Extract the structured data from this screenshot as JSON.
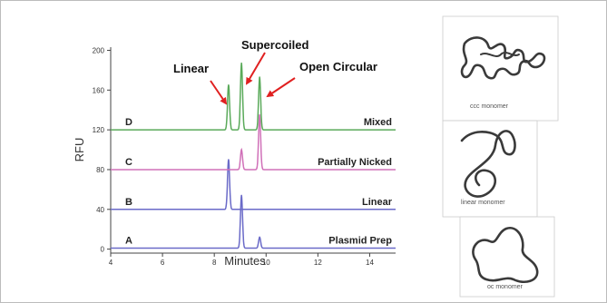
{
  "chart_data": {
    "type": "line",
    "xlabel": "Minutes",
    "ylabel": "RFU",
    "xlim": [
      4,
      15
    ],
    "ylim": [
      -4,
      205
    ],
    "x_ticks": [
      4,
      6,
      8,
      10,
      12,
      14
    ],
    "y_ticks": [
      0,
      40,
      80,
      120,
      160,
      200
    ],
    "grid": false,
    "series": [
      {
        "letter": "A",
        "name": "Plasmid Prep",
        "color": "#6a6ac8",
        "baseline": 1,
        "peaks": [
          {
            "x": 9.05,
            "y": 54
          },
          {
            "x": 9.75,
            "y": 12
          }
        ]
      },
      {
        "letter": "B",
        "name": "Linear",
        "color": "#6a6ac8",
        "baseline": 40,
        "peaks": [
          {
            "x": 8.55,
            "y": 90
          }
        ]
      },
      {
        "letter": "C",
        "name": "Partially Nicked",
        "color": "#d070b8",
        "baseline": 80,
        "peaks": [
          {
            "x": 9.05,
            "y": 100
          },
          {
            "x": 9.75,
            "y": 135
          }
        ]
      },
      {
        "letter": "D",
        "name": "Mixed",
        "color": "#5aaa5a",
        "baseline": 120,
        "peaks": [
          {
            "x": 8.55,
            "y": 165
          },
          {
            "x": 9.05,
            "y": 187
          },
          {
            "x": 9.75,
            "y": 173
          }
        ]
      }
    ],
    "annotations": [
      {
        "text": "Linear",
        "points_to": "8.55 peak (D)"
      },
      {
        "text": "Supercoiled",
        "points_to": "9.05 peak (D)"
      },
      {
        "text": "Open Circular",
        "points_to": "9.75 peak (D)"
      }
    ]
  },
  "schematics": [
    {
      "caption": "ccc monomer",
      "icon": "supercoiled-dna-icon"
    },
    {
      "caption": "linear monomer",
      "icon": "linear-dna-icon"
    },
    {
      "caption": "oc monomer",
      "icon": "open-circular-dna-icon"
    }
  ]
}
